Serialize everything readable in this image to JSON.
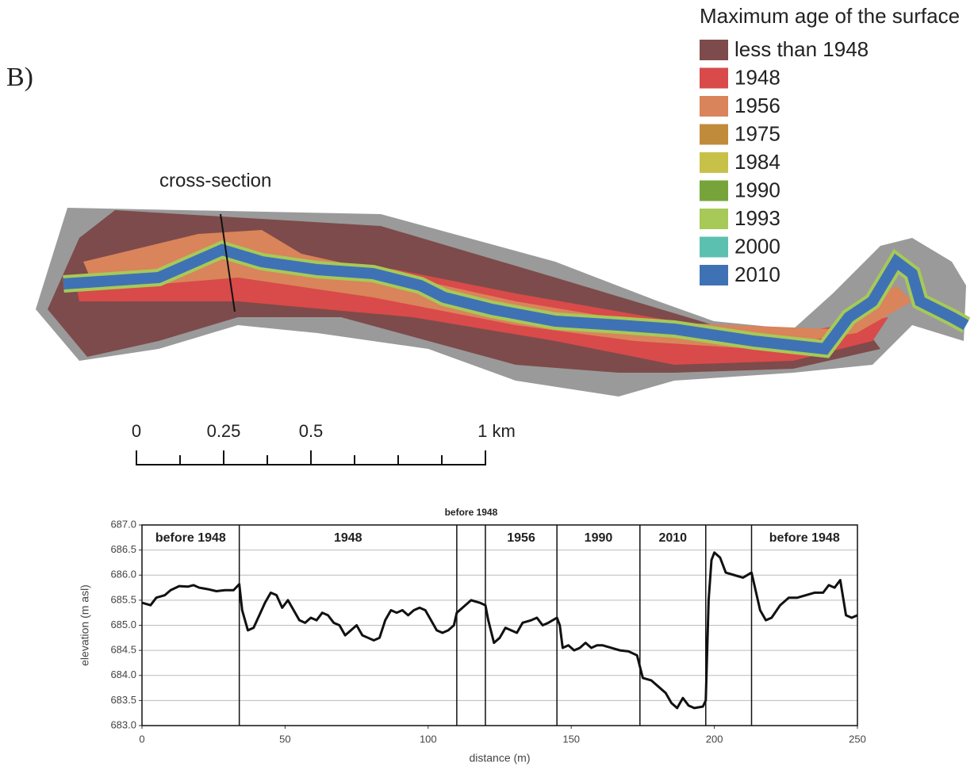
{
  "panel_label": "B)",
  "map": {
    "annotation": "cross-section",
    "legend": {
      "title": "Maximum age of the surface",
      "items": [
        {
          "label": "less than 1948",
          "color": "#7d4b4b"
        },
        {
          "label": "1948",
          "color": "#d94a4a"
        },
        {
          "label": "1956",
          "color": "#d9845a"
        },
        {
          "label": "1975",
          "color": "#c08c3c"
        },
        {
          "label": "1984",
          "color": "#c7c14a"
        },
        {
          "label": "1990",
          "color": "#76a43a"
        },
        {
          "label": "1993",
          "color": "#a7c957"
        },
        {
          "label": "2000",
          "color": "#5cc0b0"
        },
        {
          "label": "2010",
          "color": "#3f72b4"
        }
      ]
    },
    "scale_bar": {
      "xlim": [
        0,
        1
      ],
      "ticks": [
        {
          "value": 0,
          "label": "0"
        },
        {
          "value": 0.25,
          "label": "0.25"
        },
        {
          "value": 0.5,
          "label": "0.5"
        },
        {
          "value": 1,
          "label": "1 km"
        }
      ],
      "minor_ticks": [
        0.125,
        0.375,
        0.625,
        0.75,
        0.875
      ]
    }
  },
  "chart_data": {
    "type": "line",
    "xlabel": "distance (m)",
    "ylabel": "elevation (m asl)",
    "x": [
      0,
      3,
      5,
      8,
      10,
      13,
      16,
      18,
      20,
      23,
      26,
      29,
      32,
      34,
      35,
      37,
      39,
      41,
      43,
      45,
      47,
      49,
      51,
      53,
      55,
      57,
      59,
      61,
      63,
      65,
      67,
      69,
      71,
      73,
      75,
      77,
      79,
      81,
      83,
      85,
      87,
      89,
      91,
      93,
      95,
      97,
      99,
      101,
      103,
      105,
      107,
      109,
      110,
      112,
      115,
      118,
      120,
      121,
      123,
      125,
      127,
      129,
      131,
      133,
      136,
      138,
      140,
      142,
      145,
      146,
      147,
      149,
      151,
      153,
      155,
      157,
      159,
      161,
      164,
      167,
      170,
      173,
      175,
      178,
      181,
      183,
      185,
      187,
      189,
      191,
      193,
      196,
      197,
      198,
      199,
      200,
      202,
      204,
      207,
      210,
      213,
      214,
      216,
      218,
      220,
      223,
      226,
      229,
      232,
      235,
      238,
      240,
      242,
      244,
      246,
      248,
      250
    ],
    "values": [
      685.45,
      685.4,
      685.55,
      685.6,
      685.7,
      685.78,
      685.77,
      685.8,
      685.75,
      685.72,
      685.68,
      685.7,
      685.7,
      685.82,
      685.3,
      684.9,
      684.95,
      685.2,
      685.45,
      685.65,
      685.6,
      685.35,
      685.5,
      685.3,
      685.1,
      685.05,
      685.15,
      685.1,
      685.25,
      685.2,
      685.05,
      685.0,
      684.8,
      684.9,
      685.0,
      684.8,
      684.75,
      684.7,
      684.75,
      685.1,
      685.3,
      685.25,
      685.3,
      685.2,
      685.3,
      685.35,
      685.3,
      685.1,
      684.9,
      684.85,
      684.9,
      685.0,
      685.25,
      685.35,
      685.5,
      685.45,
      685.4,
      685.1,
      684.65,
      684.75,
      684.95,
      684.9,
      684.85,
      685.05,
      685.1,
      685.15,
      685.0,
      685.05,
      685.15,
      685.0,
      684.55,
      684.6,
      684.5,
      684.55,
      684.65,
      684.55,
      684.6,
      684.6,
      684.55,
      684.5,
      684.48,
      684.4,
      683.95,
      683.9,
      683.75,
      683.65,
      683.45,
      683.35,
      683.55,
      683.4,
      683.35,
      683.38,
      683.5,
      685.5,
      686.3,
      686.45,
      686.35,
      686.05,
      686.0,
      685.95,
      686.05,
      685.8,
      685.3,
      685.1,
      685.15,
      685.4,
      685.55,
      685.55,
      685.6,
      685.65,
      685.65,
      685.8,
      685.75,
      685.9,
      685.2,
      685.15,
      685.2
    ],
    "color": "#111111",
    "xlim": [
      0,
      250
    ],
    "xticks": [
      0,
      50,
      100,
      150,
      200,
      250
    ],
    "ylim": [
      683,
      687
    ],
    "yticks": [
      {
        "value": 683,
        "label": "683.0"
      },
      {
        "value": 683.5,
        "label": "683.5"
      },
      {
        "value": 684,
        "label": "684.0"
      },
      {
        "value": 684.5,
        "label": "684.5"
      },
      {
        "value": 685,
        "label": "685.0"
      },
      {
        "value": 685.5,
        "label": "685.5"
      },
      {
        "value": 686,
        "label": "686.0"
      },
      {
        "value": 686.5,
        "label": "686.5"
      },
      {
        "value": 687,
        "label": "687.0"
      }
    ],
    "grid": true,
    "zones": [
      {
        "label": "before 1948",
        "start": 0,
        "end": 34
      },
      {
        "label": "1948",
        "start": 34,
        "end": 110
      },
      {
        "label": "before 1948",
        "start": 110,
        "end": 120
      },
      {
        "label": "1956",
        "start": 120,
        "end": 145
      },
      {
        "label": "1990",
        "start": 145,
        "end": 174
      },
      {
        "label": "2010",
        "start": 174,
        "end": 197
      },
      {
        "label": null,
        "start": 197,
        "end": 213
      },
      {
        "label": "before 1948",
        "start": 213,
        "end": 250
      }
    ]
  }
}
